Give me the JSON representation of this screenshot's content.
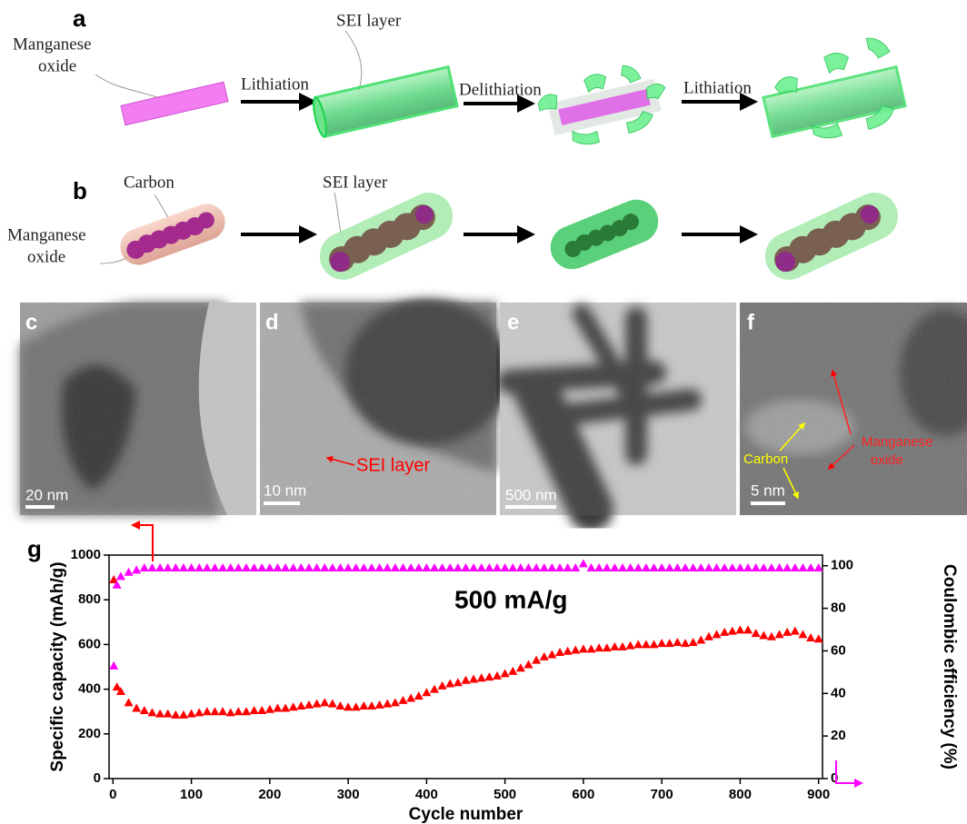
{
  "figure": {
    "panel_labels": [
      "a",
      "b",
      "c",
      "d",
      "e",
      "f",
      "g"
    ],
    "a": {
      "start_label": [
        "Manganese",
        "oxide"
      ],
      "steps": [
        "Lithiation",
        "Delithiation",
        "Lithiation"
      ],
      "sei_label": "SEI layer"
    },
    "b": {
      "carbon_label": "Carbon",
      "start_label": [
        "Manganese",
        "oxide"
      ],
      "sei_label": "SEI layer"
    },
    "c": {
      "scale_bar": "20 nm"
    },
    "d": {
      "scale_bar": "10 nm",
      "annotation": "SEI layer"
    },
    "e": {
      "scale_bar": "500 nm"
    },
    "f": {
      "scale_bar": "5 nm",
      "carbon_label": "Carbon",
      "oxide_label": [
        "Manganese",
        "oxide"
      ]
    }
  },
  "chart_data": {
    "type": "scatter",
    "xlabel": "Cycle number",
    "ylabel": "Specific capacity (mAh/g)",
    "y2label": "Coulombic efficiency (%)",
    "annotation": "500 mA/g",
    "x": [
      1,
      5,
      10,
      20,
      30,
      40,
      50,
      60,
      70,
      80,
      90,
      100,
      110,
      120,
      130,
      140,
      150,
      160,
      170,
      180,
      190,
      200,
      210,
      220,
      230,
      240,
      250,
      260,
      270,
      280,
      290,
      300,
      310,
      320,
      330,
      340,
      350,
      360,
      370,
      380,
      390,
      400,
      410,
      420,
      430,
      440,
      450,
      460,
      470,
      480,
      490,
      500,
      510,
      520,
      530,
      540,
      550,
      560,
      570,
      580,
      590,
      600,
      610,
      620,
      630,
      640,
      650,
      660,
      670,
      680,
      690,
      700,
      710,
      720,
      730,
      740,
      750,
      760,
      770,
      780,
      790,
      800,
      810,
      820,
      830,
      840,
      850,
      860,
      870,
      880,
      890,
      900
    ],
    "series": [
      {
        "color": "#ff0000",
        "marker": "triangle",
        "values": [
          890,
          410,
          390,
          340,
          315,
          305,
          295,
          290,
          290,
          285,
          285,
          290,
          295,
          300,
          300,
          300,
          295,
          300,
          300,
          305,
          305,
          310,
          315,
          315,
          320,
          325,
          330,
          335,
          340,
          335,
          325,
          320,
          320,
          325,
          325,
          330,
          335,
          340,
          350,
          360,
          370,
          385,
          400,
          415,
          425,
          430,
          440,
          445,
          450,
          455,
          460,
          470,
          480,
          495,
          510,
          530,
          545,
          555,
          565,
          570,
          575,
          580,
          580,
          585,
          585,
          590,
          590,
          595,
          600,
          600,
          600,
          605,
          605,
          610,
          605,
          610,
          620,
          635,
          645,
          655,
          660,
          665,
          665,
          650,
          640,
          635,
          645,
          655,
          660,
          645,
          630,
          625
        ]
      },
      {
        "color": "#ff00ff",
        "marker": "triangle",
        "axis": "y2",
        "values": [
          53,
          91,
          95,
          97,
          98,
          99,
          99,
          99,
          99,
          99,
          99,
          99,
          99,
          99,
          99,
          99,
          99,
          99,
          99,
          99,
          99,
          99,
          99,
          99,
          99,
          99,
          99,
          99,
          99,
          99,
          99,
          99,
          99,
          99,
          99,
          99,
          99,
          99,
          99,
          99,
          99,
          99,
          99,
          99,
          99,
          99,
          99,
          99,
          99,
          99,
          99,
          99,
          99,
          99,
          99,
          99,
          99,
          99,
          99,
          99,
          99,
          101,
          99,
          99,
          99,
          99,
          99,
          99,
          99,
          99,
          99,
          99,
          99,
          99,
          99,
          99,
          99,
          99,
          99,
          99,
          99,
          99,
          99,
          99,
          99,
          99,
          99,
          99,
          99,
          99,
          99,
          99
        ]
      }
    ],
    "xlim": [
      -5,
      905
    ],
    "xticks": [
      0,
      100,
      200,
      300,
      400,
      500,
      600,
      700,
      800,
      900
    ],
    "ylim": [
      0,
      1000
    ],
    "yticks": [
      0,
      200,
      400,
      600,
      800,
      1000
    ],
    "y2lim": [
      0,
      105
    ],
    "y2ticks": [
      0,
      20,
      40,
      60,
      80,
      100
    ]
  }
}
